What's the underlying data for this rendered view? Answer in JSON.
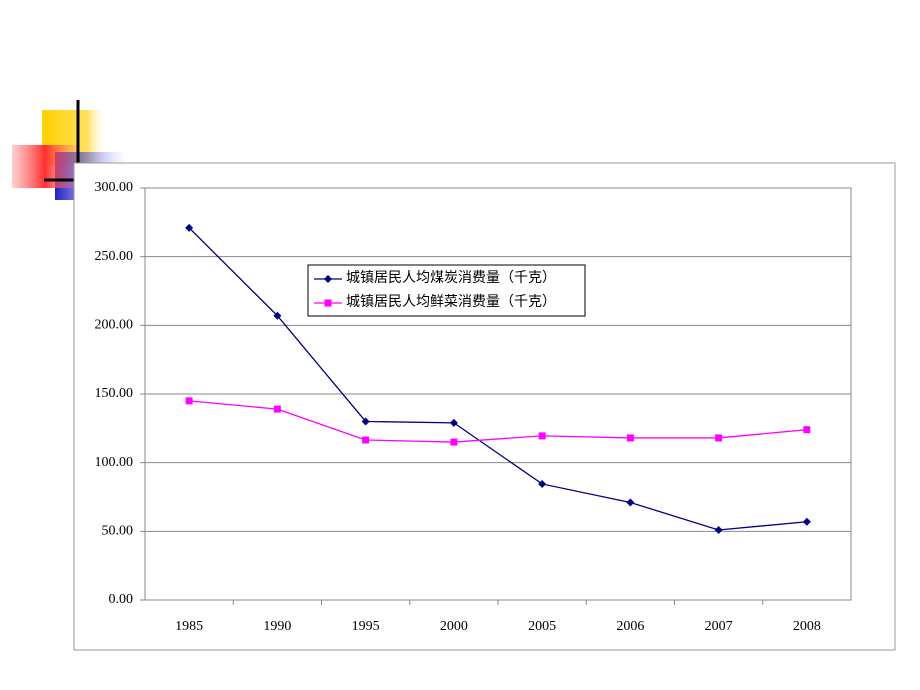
{
  "chart_data": {
    "type": "line",
    "categories": [
      "1985",
      "1990",
      "1995",
      "2000",
      "2005",
      "2006",
      "2007",
      "2008"
    ],
    "series": [
      {
        "name": "城镇居民人均煤炭消费量（千克）",
        "color": "#000080",
        "marker": "diamond",
        "values": [
          271,
          207,
          130,
          129,
          84.5,
          71,
          51,
          57
        ]
      },
      {
        "name": "城镇居民人均鲜菜消费量（千克）",
        "color": "#ff00ff",
        "marker": "square",
        "values": [
          145,
          139,
          116.5,
          115,
          119.5,
          118,
          118,
          124
        ]
      }
    ],
    "ylim": [
      0,
      300
    ],
    "yticks": [
      {
        "value": 0,
        "label": "0.00"
      },
      {
        "value": 50,
        "label": "50.00"
      },
      {
        "value": 100,
        "label": "100.00"
      },
      {
        "value": 150,
        "label": "150.00"
      },
      {
        "value": 200,
        "label": "200.00"
      },
      {
        "value": 250,
        "label": "250.00"
      },
      {
        "value": 300,
        "label": "300.00"
      }
    ],
    "grid": true
  }
}
